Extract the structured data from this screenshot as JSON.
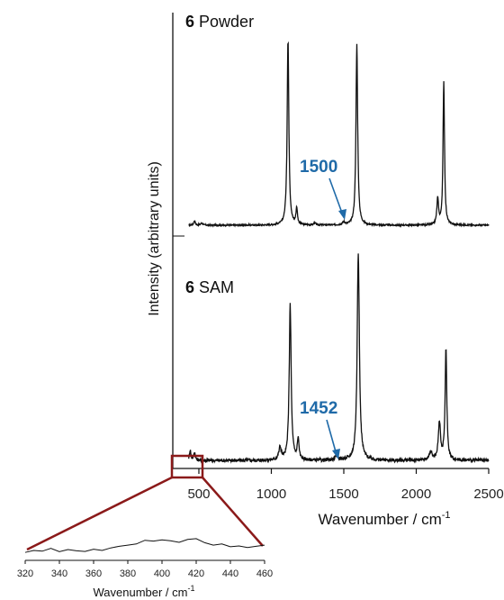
{
  "chart_data": [
    {
      "type": "line",
      "xlabel": "Wavenumber / cm",
      "xlabel_sup": "-1",
      "ylabel": "Intensity (arbitrary units)",
      "xlim": [
        320,
        2500
      ],
      "xticks": [
        500,
        1000,
        1500,
        2000,
        2500
      ],
      "grid": false,
      "series": [
        {
          "name_bold": "6",
          "name": "Powder",
          "baseline": 0.0,
          "noise": 0.004,
          "peaks": [
            {
              "x": 1115,
              "h": 1.0,
              "w": 7
            },
            {
              "x": 1175,
              "h": 0.09,
              "w": 6
            },
            {
              "x": 1590,
              "h": 0.98,
              "w": 7
            },
            {
              "x": 2148,
              "h": 0.14,
              "w": 7
            },
            {
              "x": 2190,
              "h": 0.78,
              "w": 6
            },
            {
              "x": 470,
              "h": 0.025,
              "w": 6
            },
            {
              "x": 520,
              "h": 0.012,
              "w": 8
            },
            {
              "x": 1300,
              "h": 0.01,
              "w": 10
            },
            {
              "x": 1500,
              "h": 0.015,
              "w": 10
            }
          ],
          "annotation": {
            "text": "1500",
            "x": 1500
          }
        },
        {
          "name_bold": "6",
          "name": "SAM",
          "baseline": 0.03,
          "noise": 0.008,
          "peaks": [
            {
              "x": 1130,
              "h": 0.75,
              "w": 8
            },
            {
              "x": 1185,
              "h": 0.1,
              "w": 7
            },
            {
              "x": 1600,
              "h": 1.0,
              "w": 9
            },
            {
              "x": 2160,
              "h": 0.18,
              "w": 9
            },
            {
              "x": 2205,
              "h": 0.53,
              "w": 7
            },
            {
              "x": 440,
              "h": 0.05,
              "w": 6
            },
            {
              "x": 470,
              "h": 0.04,
              "w": 6
            },
            {
              "x": 1060,
              "h": 0.06,
              "w": 10
            },
            {
              "x": 1452,
              "h": 0.02,
              "w": 12
            },
            {
              "x": 2100,
              "h": 0.04,
              "w": 12
            }
          ],
          "annotation": {
            "text": "1452",
            "x": 1452
          }
        }
      ]
    },
    {
      "type": "line",
      "inset": true,
      "xlabel": "Wavenumber / cm",
      "xlabel_sup": "-1",
      "xlim": [
        320,
        460
      ],
      "xticks": [
        320,
        340,
        360,
        380,
        400,
        420,
        440,
        460
      ],
      "series": [
        {
          "x": [
            320,
            325,
            330,
            335,
            340,
            345,
            350,
            355,
            360,
            365,
            370,
            375,
            380,
            385,
            390,
            395,
            400,
            405,
            410,
            415,
            420,
            425,
            430,
            435,
            440,
            445,
            450,
            455,
            460
          ],
          "y": [
            0.1,
            0.22,
            0.18,
            0.35,
            0.15,
            0.28,
            0.2,
            0.16,
            0.3,
            0.22,
            0.38,
            0.48,
            0.55,
            0.62,
            0.85,
            0.8,
            0.88,
            0.82,
            0.72,
            0.9,
            0.95,
            0.7,
            0.55,
            0.62,
            0.45,
            0.5,
            0.4,
            0.48,
            0.55
          ]
        }
      ]
    }
  ]
}
